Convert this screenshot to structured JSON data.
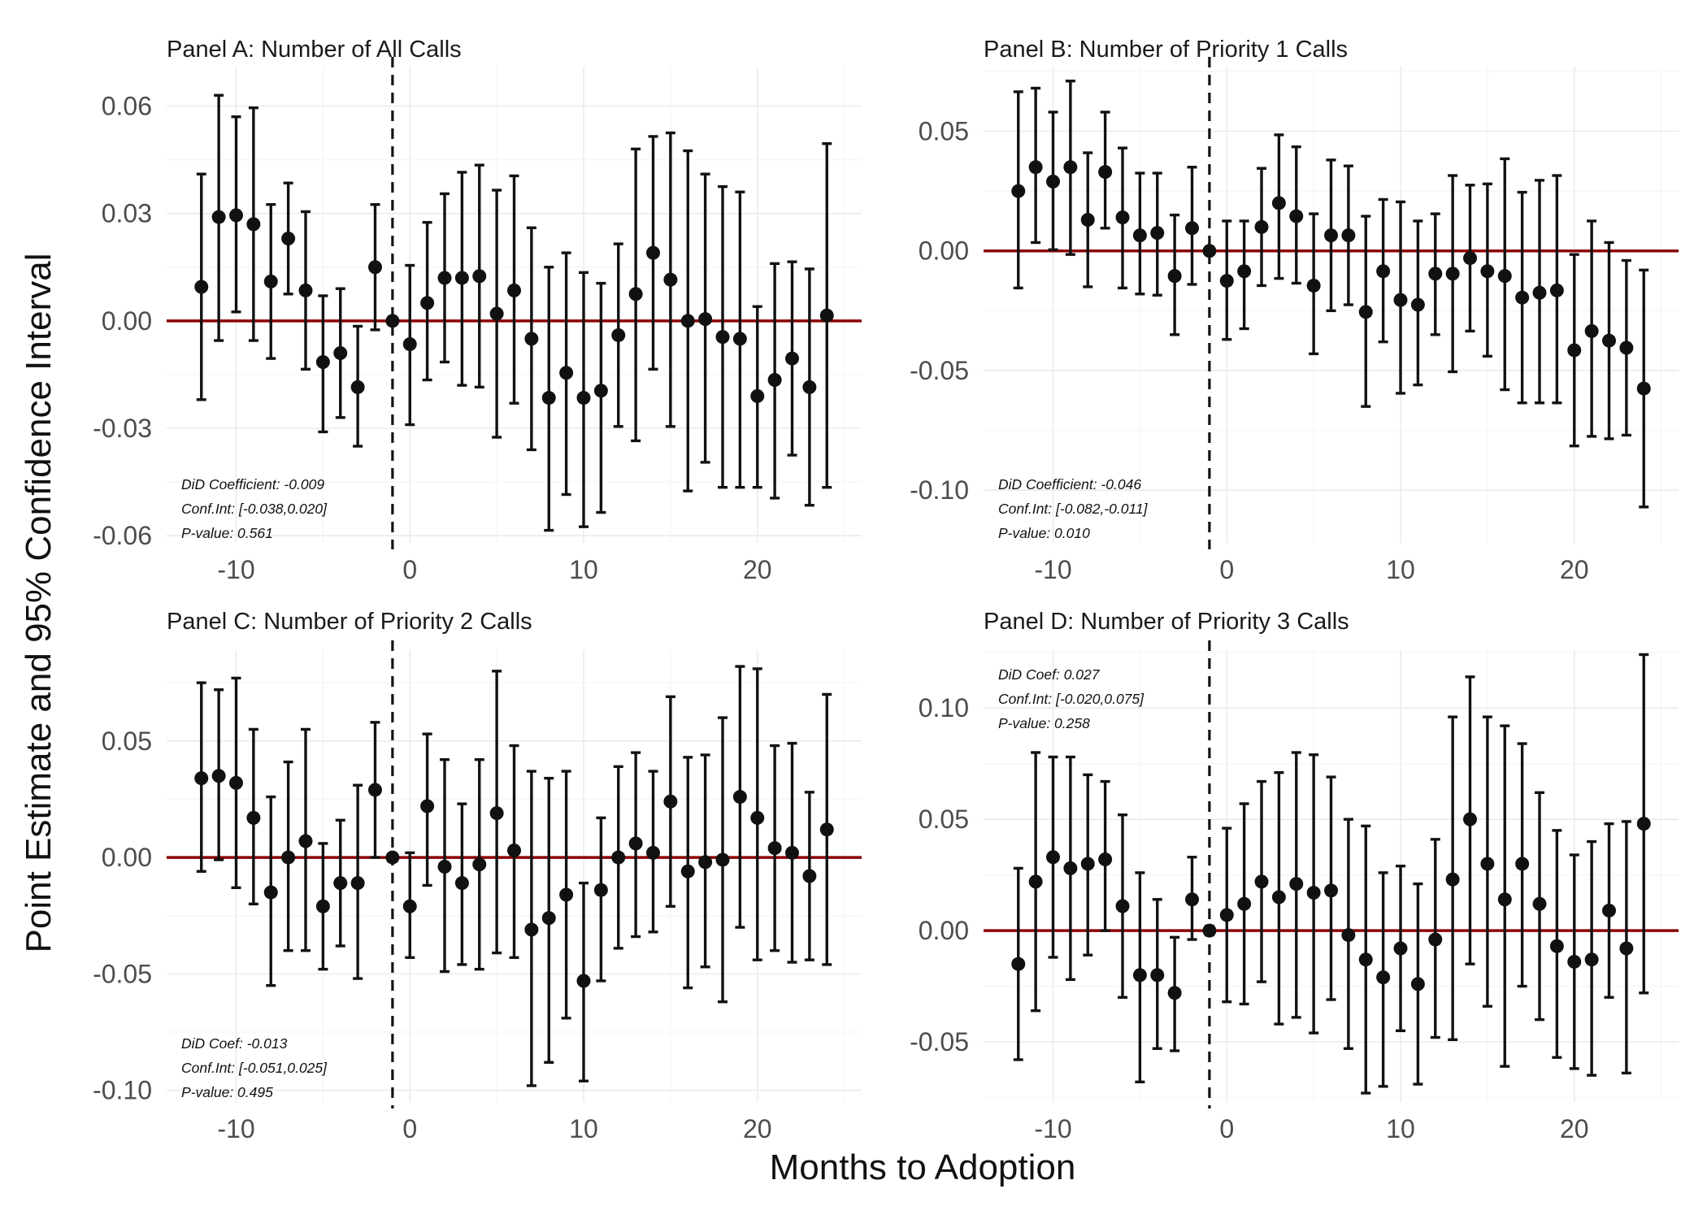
{
  "figure": {
    "ylabel": "Point Estimate and 95% Confidence Interval",
    "xlabel": "Months to Adoption"
  },
  "chart_data": [
    {
      "type": "scatter",
      "title": "Panel A: Number of All Calls",
      "xlabel": "Months to Adoption",
      "ylabel": "Point Estimate and 95% Confidence Interval",
      "xlim": [
        -14,
        26
      ],
      "ylim": [
        -0.062,
        0.071
      ],
      "x_ticks": [
        -10,
        0,
        10,
        20
      ],
      "x_tick_labels": [
        "-10",
        "0",
        "10",
        "20"
      ],
      "y_ticks": [
        0.06,
        0.03,
        0.0,
        -0.03,
        -0.06
      ],
      "y_tick_labels": [
        "0.06",
        "0.03",
        "0.00",
        "-0.03",
        "-0.06"
      ],
      "reference_line_y": 0,
      "event_line_x": -1,
      "grid": true,
      "annotation_position": "bottom-left",
      "annotations": [
        "DiD Coefficient: -0.009",
        "Conf.Int: [-0.038,0.020]",
        "P-value: 0.561"
      ],
      "x": [
        -12,
        -11,
        -10,
        -9,
        -8,
        -7,
        -6,
        -5,
        -4,
        -3,
        -2,
        -1,
        0,
        1,
        2,
        3,
        4,
        5,
        6,
        7,
        8,
        9,
        10,
        11,
        12,
        13,
        14,
        15,
        16,
        17,
        18,
        19,
        20,
        21,
        22,
        23,
        24
      ],
      "estimate": [
        0.0095,
        0.029,
        0.0295,
        0.027,
        0.011,
        0.023,
        0.0085,
        -0.0115,
        -0.009,
        -0.0185,
        0.015,
        0.0,
        -0.0065,
        0.005,
        0.012,
        0.012,
        0.0125,
        0.002,
        0.0085,
        -0.005,
        -0.0215,
        -0.0145,
        -0.0215,
        -0.0195,
        -0.004,
        0.0075,
        0.019,
        0.0115,
        0.0,
        0.0005,
        -0.0045,
        -0.005,
        -0.021,
        -0.0165,
        -0.0105,
        -0.0185,
        0.0015
      ],
      "lower": [
        -0.022,
        -0.0055,
        0.0025,
        -0.0055,
        -0.0105,
        0.0075,
        -0.0135,
        -0.031,
        -0.027,
        -0.035,
        -0.0025,
        -0.001,
        -0.029,
        -0.0165,
        -0.0115,
        -0.018,
        -0.0185,
        -0.0325,
        -0.023,
        -0.036,
        -0.0585,
        -0.0485,
        -0.0575,
        -0.0535,
        -0.0295,
        -0.0335,
        -0.0135,
        -0.0295,
        -0.0475,
        -0.0395,
        -0.0465,
        -0.0465,
        -0.0465,
        -0.0495,
        -0.0375,
        -0.0515,
        -0.0465
      ],
      "upper": [
        0.041,
        0.063,
        0.057,
        0.0595,
        0.0325,
        0.0385,
        0.0305,
        0.007,
        0.009,
        -0.0015,
        0.0325,
        0.001,
        0.0155,
        0.0275,
        0.0355,
        0.0415,
        0.0435,
        0.0365,
        0.0405,
        0.026,
        0.015,
        0.019,
        0.0135,
        0.0105,
        0.0215,
        0.048,
        0.0515,
        0.0525,
        0.0475,
        0.041,
        0.0375,
        0.036,
        0.004,
        0.016,
        0.0165,
        0.0145,
        0.0495
      ]
    },
    {
      "type": "scatter",
      "title": "Panel B: Number of Priority 1 Calls",
      "xlabel": "Months to Adoption",
      "ylabel": "Point Estimate and 95% Confidence Interval",
      "xlim": [
        -14,
        26
      ],
      "ylim": [
        -0.122,
        0.077
      ],
      "x_ticks": [
        -10,
        0,
        10,
        20
      ],
      "x_tick_labels": [
        "-10",
        "0",
        "10",
        "20"
      ],
      "y_ticks": [
        0.05,
        0.0,
        -0.05,
        -0.1
      ],
      "y_tick_labels": [
        "0.05",
        "0.00",
        "-0.05",
        "-0.10"
      ],
      "reference_line_y": 0,
      "event_line_x": -1,
      "grid": true,
      "annotation_position": "bottom-left",
      "annotations": [
        "DiD Coefficient: -0.046",
        "Conf.Int: [-0.082,-0.011]",
        "P-value: 0.010"
      ],
      "x": [
        -12,
        -11,
        -10,
        -9,
        -8,
        -7,
        -6,
        -5,
        -4,
        -3,
        -2,
        -1,
        0,
        1,
        2,
        3,
        4,
        5,
        6,
        7,
        8,
        9,
        10,
        11,
        12,
        13,
        14,
        15,
        16,
        17,
        18,
        19,
        20,
        21,
        22,
        23,
        24
      ],
      "estimate": [
        0.025,
        0.035,
        0.029,
        0.035,
        0.013,
        0.033,
        0.014,
        0.0065,
        0.0075,
        -0.0105,
        0.0095,
        0.0,
        -0.0125,
        -0.0085,
        0.01,
        0.02,
        0.0145,
        -0.0145,
        0.0065,
        0.0065,
        -0.0255,
        -0.0085,
        -0.0205,
        -0.0225,
        -0.0095,
        -0.0095,
        -0.003,
        -0.0085,
        -0.0105,
        -0.0195,
        -0.0175,
        -0.0165,
        -0.0415,
        -0.0335,
        -0.0375,
        -0.0405,
        -0.0575
      ],
      "lower": [
        -0.0155,
        0.0035,
        0.0005,
        -0.0015,
        -0.015,
        0.0095,
        -0.0155,
        -0.018,
        -0.0185,
        -0.035,
        -0.014,
        -0.0015,
        -0.037,
        -0.0325,
        -0.0145,
        -0.0115,
        -0.0135,
        -0.043,
        -0.025,
        -0.0225,
        -0.065,
        -0.038,
        -0.0595,
        -0.056,
        -0.035,
        -0.0505,
        -0.0335,
        -0.044,
        -0.058,
        -0.0635,
        -0.0635,
        -0.0635,
        -0.0815,
        -0.0775,
        -0.0785,
        -0.077,
        -0.107
      ],
      "upper": [
        0.0665,
        0.068,
        0.058,
        0.071,
        0.041,
        0.058,
        0.043,
        0.0325,
        0.0325,
        0.015,
        0.035,
        0.0015,
        0.0125,
        0.0125,
        0.0345,
        0.0485,
        0.0435,
        0.0155,
        0.038,
        0.0355,
        0.0145,
        0.0215,
        0.0205,
        0.0125,
        0.0155,
        0.0315,
        0.0275,
        0.028,
        0.0385,
        0.0245,
        0.0295,
        0.0315,
        -0.0015,
        0.0125,
        0.0035,
        -0.004,
        -0.008
      ]
    },
    {
      "type": "scatter",
      "title": "Panel C: Number of Priority 2 Calls",
      "xlabel": "Months to Adoption",
      "ylabel": "Point Estimate and 95% Confidence Interval",
      "xlim": [
        -14,
        26
      ],
      "ylim": [
        -0.105,
        0.089
      ],
      "x_ticks": [
        -10,
        0,
        10,
        20
      ],
      "x_tick_labels": [
        "-10",
        "0",
        "10",
        "20"
      ],
      "y_ticks": [
        0.05,
        0.0,
        -0.05,
        -0.1
      ],
      "y_tick_labels": [
        "0.05",
        "0.00",
        "-0.05",
        "-0.10"
      ],
      "reference_line_y": 0,
      "event_line_x": -1,
      "grid": true,
      "annotation_position": "bottom-left",
      "annotations": [
        "DiD Coef: -0.013",
        "Conf.Int: [-0.051,0.025]",
        "P-value: 0.495"
      ],
      "x": [
        -12,
        -11,
        -10,
        -9,
        -8,
        -7,
        -6,
        -5,
        -4,
        -3,
        -2,
        -1,
        0,
        1,
        2,
        3,
        4,
        5,
        6,
        7,
        8,
        9,
        10,
        11,
        12,
        13,
        14,
        15,
        16,
        17,
        18,
        19,
        20,
        21,
        22,
        23,
        24
      ],
      "estimate": [
        0.034,
        0.035,
        0.032,
        0.017,
        -0.015,
        0.0,
        0.007,
        -0.021,
        -0.011,
        -0.011,
        0.029,
        0.0,
        -0.021,
        0.022,
        -0.004,
        -0.011,
        -0.003,
        0.019,
        0.003,
        -0.031,
        -0.026,
        -0.016,
        -0.053,
        -0.014,
        0.0,
        0.006,
        0.002,
        0.024,
        -0.006,
        -0.002,
        -0.001,
        0.026,
        0.017,
        0.004,
        0.002,
        -0.008,
        0.012
      ],
      "lower": [
        -0.006,
        -0.001,
        -0.013,
        -0.02,
        -0.055,
        -0.04,
        -0.04,
        -0.048,
        -0.038,
        -0.052,
        0.0,
        -0.001,
        -0.043,
        -0.012,
        -0.049,
        -0.046,
        -0.048,
        -0.041,
        -0.043,
        -0.098,
        -0.088,
        -0.069,
        -0.096,
        -0.053,
        -0.039,
        -0.034,
        -0.032,
        -0.021,
        -0.056,
        -0.047,
        -0.062,
        -0.03,
        -0.044,
        -0.04,
        -0.045,
        -0.044,
        -0.046
      ],
      "upper": [
        0.075,
        0.072,
        0.077,
        0.055,
        0.026,
        0.041,
        0.055,
        0.006,
        0.016,
        0.031,
        0.058,
        0.001,
        0.002,
        0.053,
        0.042,
        0.023,
        0.042,
        0.08,
        0.048,
        0.037,
        0.034,
        0.037,
        -0.011,
        0.017,
        0.039,
        0.045,
        0.037,
        0.069,
        0.043,
        0.044,
        0.06,
        0.082,
        0.081,
        0.048,
        0.049,
        0.028,
        0.07
      ]
    },
    {
      "type": "scatter",
      "title": "Panel D: Number of Priority 3 Calls",
      "xlabel": "Months to Adoption",
      "ylabel": "Point Estimate and 95% Confidence Interval",
      "xlim": [
        -14,
        26
      ],
      "ylim": [
        -0.077,
        0.126
      ],
      "x_ticks": [
        -10,
        0,
        10,
        20
      ],
      "x_tick_labels": [
        "-10",
        "0",
        "10",
        "20"
      ],
      "y_ticks": [
        0.1,
        0.05,
        0.0,
        -0.05
      ],
      "y_tick_labels": [
        "0.10",
        "0.05",
        "0.00",
        "-0.05"
      ],
      "reference_line_y": 0,
      "event_line_x": -1,
      "grid": true,
      "annotation_position": "top-left",
      "annotations": [
        "DiD Coef: 0.027",
        "Conf.Int: [-0.020,0.075]",
        "P-value: 0.258"
      ],
      "x": [
        -12,
        -11,
        -10,
        -9,
        -8,
        -7,
        -6,
        -5,
        -4,
        -3,
        -2,
        -1,
        0,
        1,
        2,
        3,
        4,
        5,
        6,
        7,
        8,
        9,
        10,
        11,
        12,
        13,
        14,
        15,
        16,
        17,
        18,
        19,
        20,
        21,
        22,
        23,
        24
      ],
      "estimate": [
        -0.015,
        0.022,
        0.033,
        0.028,
        0.03,
        0.032,
        0.011,
        -0.02,
        -0.02,
        -0.028,
        0.014,
        0.0,
        0.007,
        0.012,
        0.022,
        0.015,
        0.021,
        0.017,
        0.018,
        -0.002,
        -0.013,
        -0.021,
        -0.008,
        -0.024,
        -0.004,
        0.023,
        0.05,
        0.03,
        0.014,
        0.03,
        0.012,
        -0.007,
        -0.014,
        -0.013,
        0.009,
        -0.008,
        0.048
      ],
      "lower": [
        -0.058,
        -0.036,
        -0.012,
        -0.022,
        -0.011,
        0.0,
        -0.03,
        -0.068,
        -0.053,
        -0.054,
        -0.004,
        -0.002,
        -0.032,
        -0.033,
        -0.023,
        -0.042,
        -0.039,
        -0.046,
        -0.031,
        -0.053,
        -0.073,
        -0.07,
        -0.045,
        -0.069,
        -0.048,
        -0.049,
        -0.015,
        -0.034,
        -0.061,
        -0.025,
        -0.04,
        -0.057,
        -0.062,
        -0.065,
        -0.03,
        -0.064,
        -0.028
      ],
      "upper": [
        0.028,
        0.08,
        0.078,
        0.078,
        0.07,
        0.067,
        0.052,
        0.026,
        0.014,
        -0.003,
        0.033,
        0.002,
        0.046,
        0.057,
        0.067,
        0.071,
        0.08,
        0.079,
        0.069,
        0.05,
        0.047,
        0.026,
        0.029,
        0.021,
        0.041,
        0.096,
        0.114,
        0.096,
        0.092,
        0.084,
        0.062,
        0.045,
        0.034,
        0.04,
        0.048,
        0.049,
        0.124
      ]
    }
  ]
}
